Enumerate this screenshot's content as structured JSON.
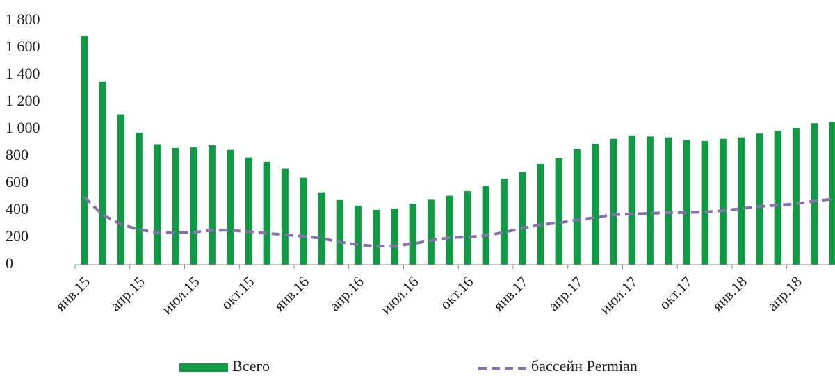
{
  "chart_data": {
    "type": "bar",
    "categories": [
      "янв.15",
      null,
      null,
      "апр.15",
      null,
      null,
      "июл.15",
      null,
      null,
      "окт.15",
      null,
      null,
      "янв.16",
      null,
      null,
      "апр.16",
      null,
      null,
      "июл.16",
      null,
      null,
      "окт.16",
      null,
      null,
      "янв.17",
      null,
      null,
      "апр.17",
      null,
      null,
      "июл.17",
      null,
      null,
      "окт.17",
      null,
      null,
      "янв.18",
      null,
      null,
      "апр.18",
      null,
      null
    ],
    "series": [
      {
        "name": "Всего",
        "type": "bar",
        "color": "#109a44",
        "values": [
          1687,
          1350,
          1110,
          975,
          890,
          862,
          866,
          882,
          848,
          792,
          760,
          710,
          643,
          535,
          478,
          437,
          406,
          414,
          450,
          480,
          510,
          543,
          580,
          636,
          682,
          744,
          789,
          853,
          893,
          930,
          955,
          947,
          940,
          920,
          913,
          930,
          940,
          968,
          988,
          1010,
          1045,
          1055
        ]
      },
      {
        "name": "бассейн Permian",
        "type": "line",
        "color": "#8a6fb0",
        "values": [
          500,
          370,
          300,
          260,
          238,
          235,
          240,
          255,
          255,
          245,
          232,
          222,
          210,
          195,
          168,
          148,
          138,
          140,
          155,
          180,
          200,
          205,
          215,
          240,
          270,
          295,
          310,
          330,
          350,
          370,
          375,
          380,
          385,
          385,
          390,
          400,
          415,
          430,
          440,
          450,
          470,
          485
        ]
      }
    ],
    "ylim": [
      0,
      1800
    ],
    "yticks": [
      0,
      200,
      400,
      600,
      800,
      {
        "value": 1000,
        "label": "1 000"
      },
      {
        "value": 1200,
        "label": "1 200"
      },
      {
        "value": 1400,
        "label": "1 400"
      },
      {
        "value": 1600,
        "label": "1 600"
      },
      {
        "value": 1800,
        "label": "1 800"
      }
    ],
    "grid": false
  }
}
